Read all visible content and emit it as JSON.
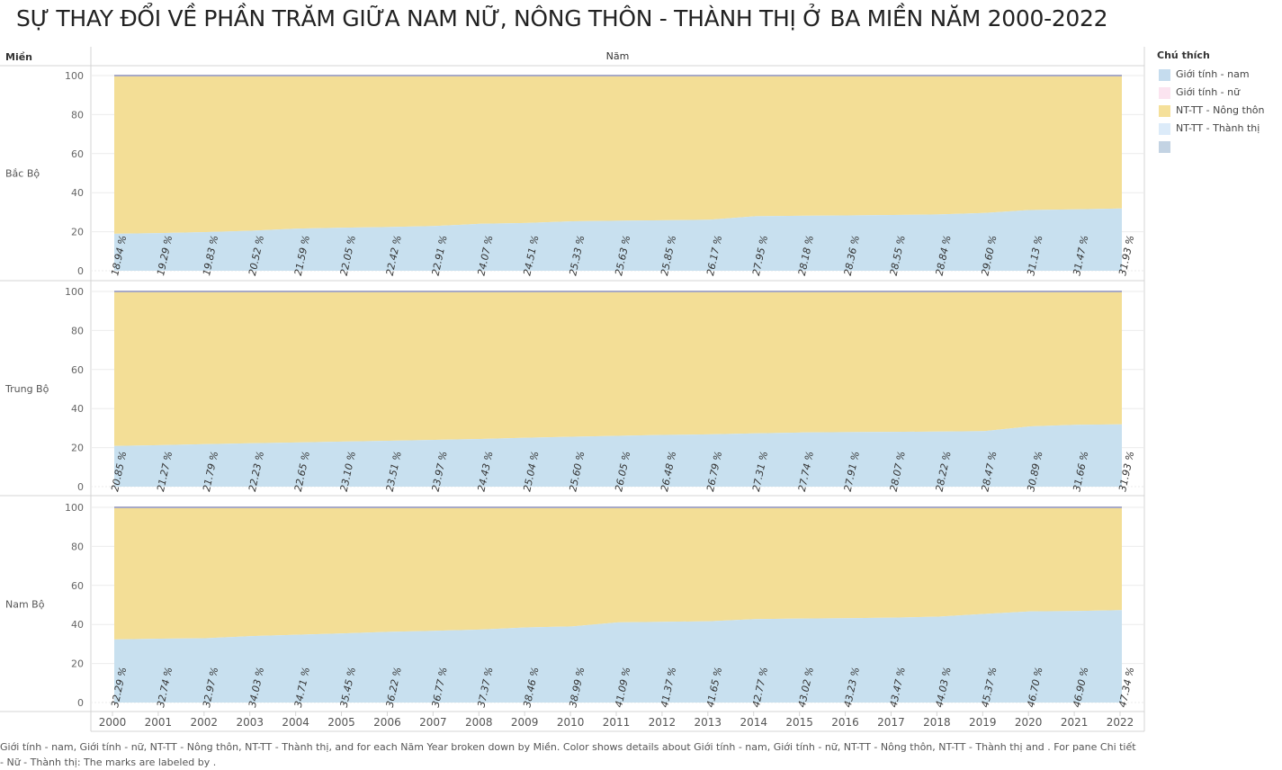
{
  "title": "SỰ THAY ĐỔI VỀ PHẦN TRĂM GIỮA NAM NỮ, NÔNG THÔN - THÀNH THỊ Ở BA MIỀN NĂM 2000-2022",
  "caption": "Giới tính - nam, Giới tính - nữ, NT-TT - Nông thôn, NT-TT - Thành thị,   and   for each Năm Year broken down by Miền.  Color shows details about Giới tính - nam, Giới tính - nữ, NT-TT - Nông thôn, NT-TT - Thành thị and  .  For pane Chi tiết - Nữ - Thành thị:  The marks are labeled by  .",
  "legend": {
    "title": "Chú thích",
    "items": [
      {
        "label": "Giới tính - nam",
        "color": "#c5dcee"
      },
      {
        "label": "Giới tính - nữ",
        "color": "#fbe4f0"
      },
      {
        "label": "NT-TT - Nông thôn",
        "color": "#f5e09a"
      },
      {
        "label": "NT-TT - Thành thị",
        "color": "#dcebf9"
      },
      {
        "label": "",
        "color": "#c3d3e3"
      }
    ]
  },
  "colors": {
    "rural": "#f3de96",
    "urban": "#c8e0ef",
    "top_line": "#a7a9c6",
    "grid": "#ebebeb",
    "border": "#d4d4d4"
  },
  "chart_data": {
    "type": "area",
    "row_header": "Miền",
    "column_header": "Năm",
    "x": [
      2000,
      2001,
      2002,
      2003,
      2004,
      2005,
      2006,
      2007,
      2008,
      2009,
      2010,
      2011,
      2012,
      2013,
      2014,
      2015,
      2016,
      2017,
      2018,
      2019,
      2020,
      2021,
      2022
    ],
    "y_ticks": [
      0,
      20,
      40,
      60,
      80,
      100
    ],
    "ylim": [
      0,
      100
    ],
    "label_suffix": " %",
    "panels": [
      {
        "name": "Bắc Bộ",
        "values": [
          18.94,
          19.29,
          19.83,
          20.52,
          21.59,
          22.05,
          22.42,
          22.91,
          24.07,
          24.51,
          25.33,
          25.63,
          25.85,
          26.17,
          27.95,
          28.18,
          28.36,
          28.55,
          28.84,
          29.6,
          31.13,
          31.47,
          31.93
        ]
      },
      {
        "name": "Trung Bộ",
        "values": [
          20.85,
          21.27,
          21.79,
          22.23,
          22.65,
          23.1,
          23.51,
          23.97,
          24.43,
          25.04,
          25.6,
          26.05,
          26.48,
          26.79,
          27.31,
          27.74,
          27.91,
          28.07,
          28.22,
          28.47,
          30.89,
          31.66,
          31.93
        ]
      },
      {
        "name": "Nam Bộ",
        "values": [
          32.29,
          32.74,
          32.97,
          34.03,
          34.71,
          35.45,
          36.22,
          36.77,
          37.37,
          38.46,
          38.99,
          41.09,
          41.37,
          41.65,
          42.77,
          43.02,
          43.23,
          43.47,
          44.03,
          45.37,
          46.7,
          46.9,
          47.34
        ]
      }
    ]
  }
}
